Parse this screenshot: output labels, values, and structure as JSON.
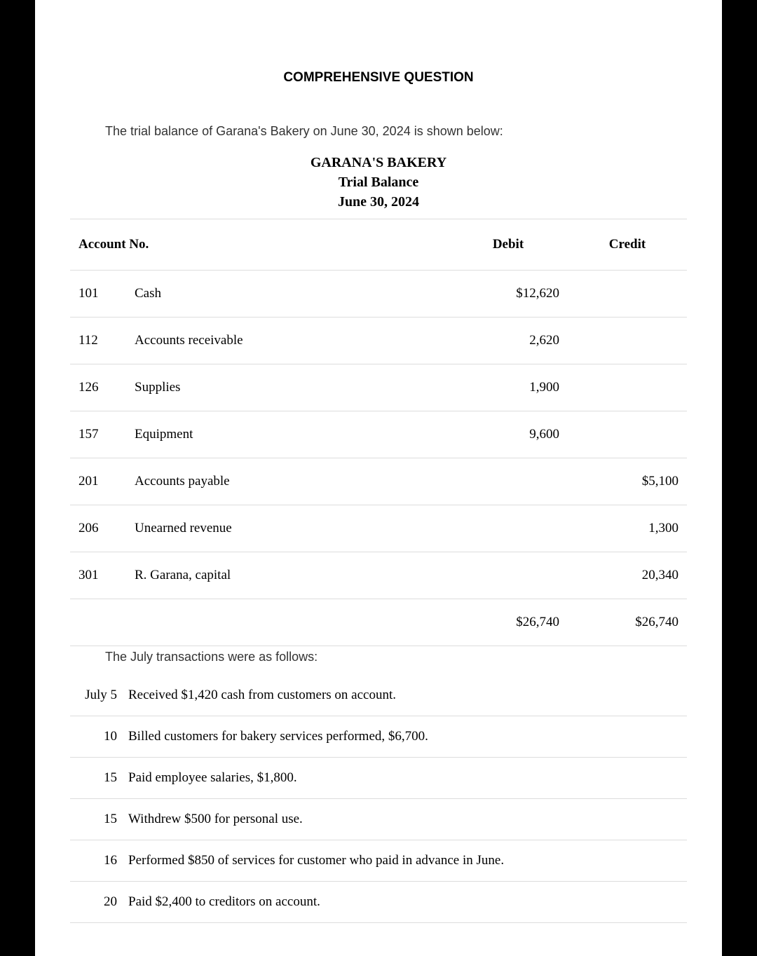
{
  "heading": "COMPREHENSIVE QUESTION",
  "intro": "The trial balance of Garana's Bakery on June 30, 2024 is shown below:",
  "company_name": "GARANA'S BAKERY",
  "report_title": "Trial Balance",
  "report_date": "June 30, 2024",
  "table_headers": {
    "account_no": "Account No.",
    "debit": "Debit",
    "credit": "Credit"
  },
  "trial_balance_rows": [
    {
      "acct": "101",
      "name": "Cash",
      "debit": "$12,620",
      "credit": ""
    },
    {
      "acct": "112",
      "name": "Accounts receivable",
      "debit": "2,620",
      "credit": ""
    },
    {
      "acct": "126",
      "name": "Supplies",
      "debit": "1,900",
      "credit": ""
    },
    {
      "acct": "157",
      "name": "Equipment",
      "debit": "9,600",
      "credit": ""
    },
    {
      "acct": "201",
      "name": "Accounts payable",
      "debit": "",
      "credit": "$5,100"
    },
    {
      "acct": "206",
      "name": "Unearned revenue",
      "debit": "",
      "credit": "1,300"
    },
    {
      "acct": "301",
      "name": "R. Garana, capital",
      "debit": "",
      "credit": "20,340"
    }
  ],
  "totals": {
    "debit": "$26,740",
    "credit": "$26,740"
  },
  "followup": "The July transactions were as follows:",
  "transactions": [
    {
      "date": "July 5",
      "desc": "Received $1,420 cash from customers on account."
    },
    {
      "date": "10",
      "desc": "Billed customers for bakery services performed, $6,700."
    },
    {
      "date": "15",
      "desc": "Paid employee salaries, $1,800."
    },
    {
      "date": "15",
      "desc": "Withdrew $500 for personal use."
    },
    {
      "date": "16",
      "desc": "Performed $850 of services for customer who paid in advance in June."
    },
    {
      "date": "20",
      "desc": "Paid $2,400 to creditors on account."
    }
  ]
}
